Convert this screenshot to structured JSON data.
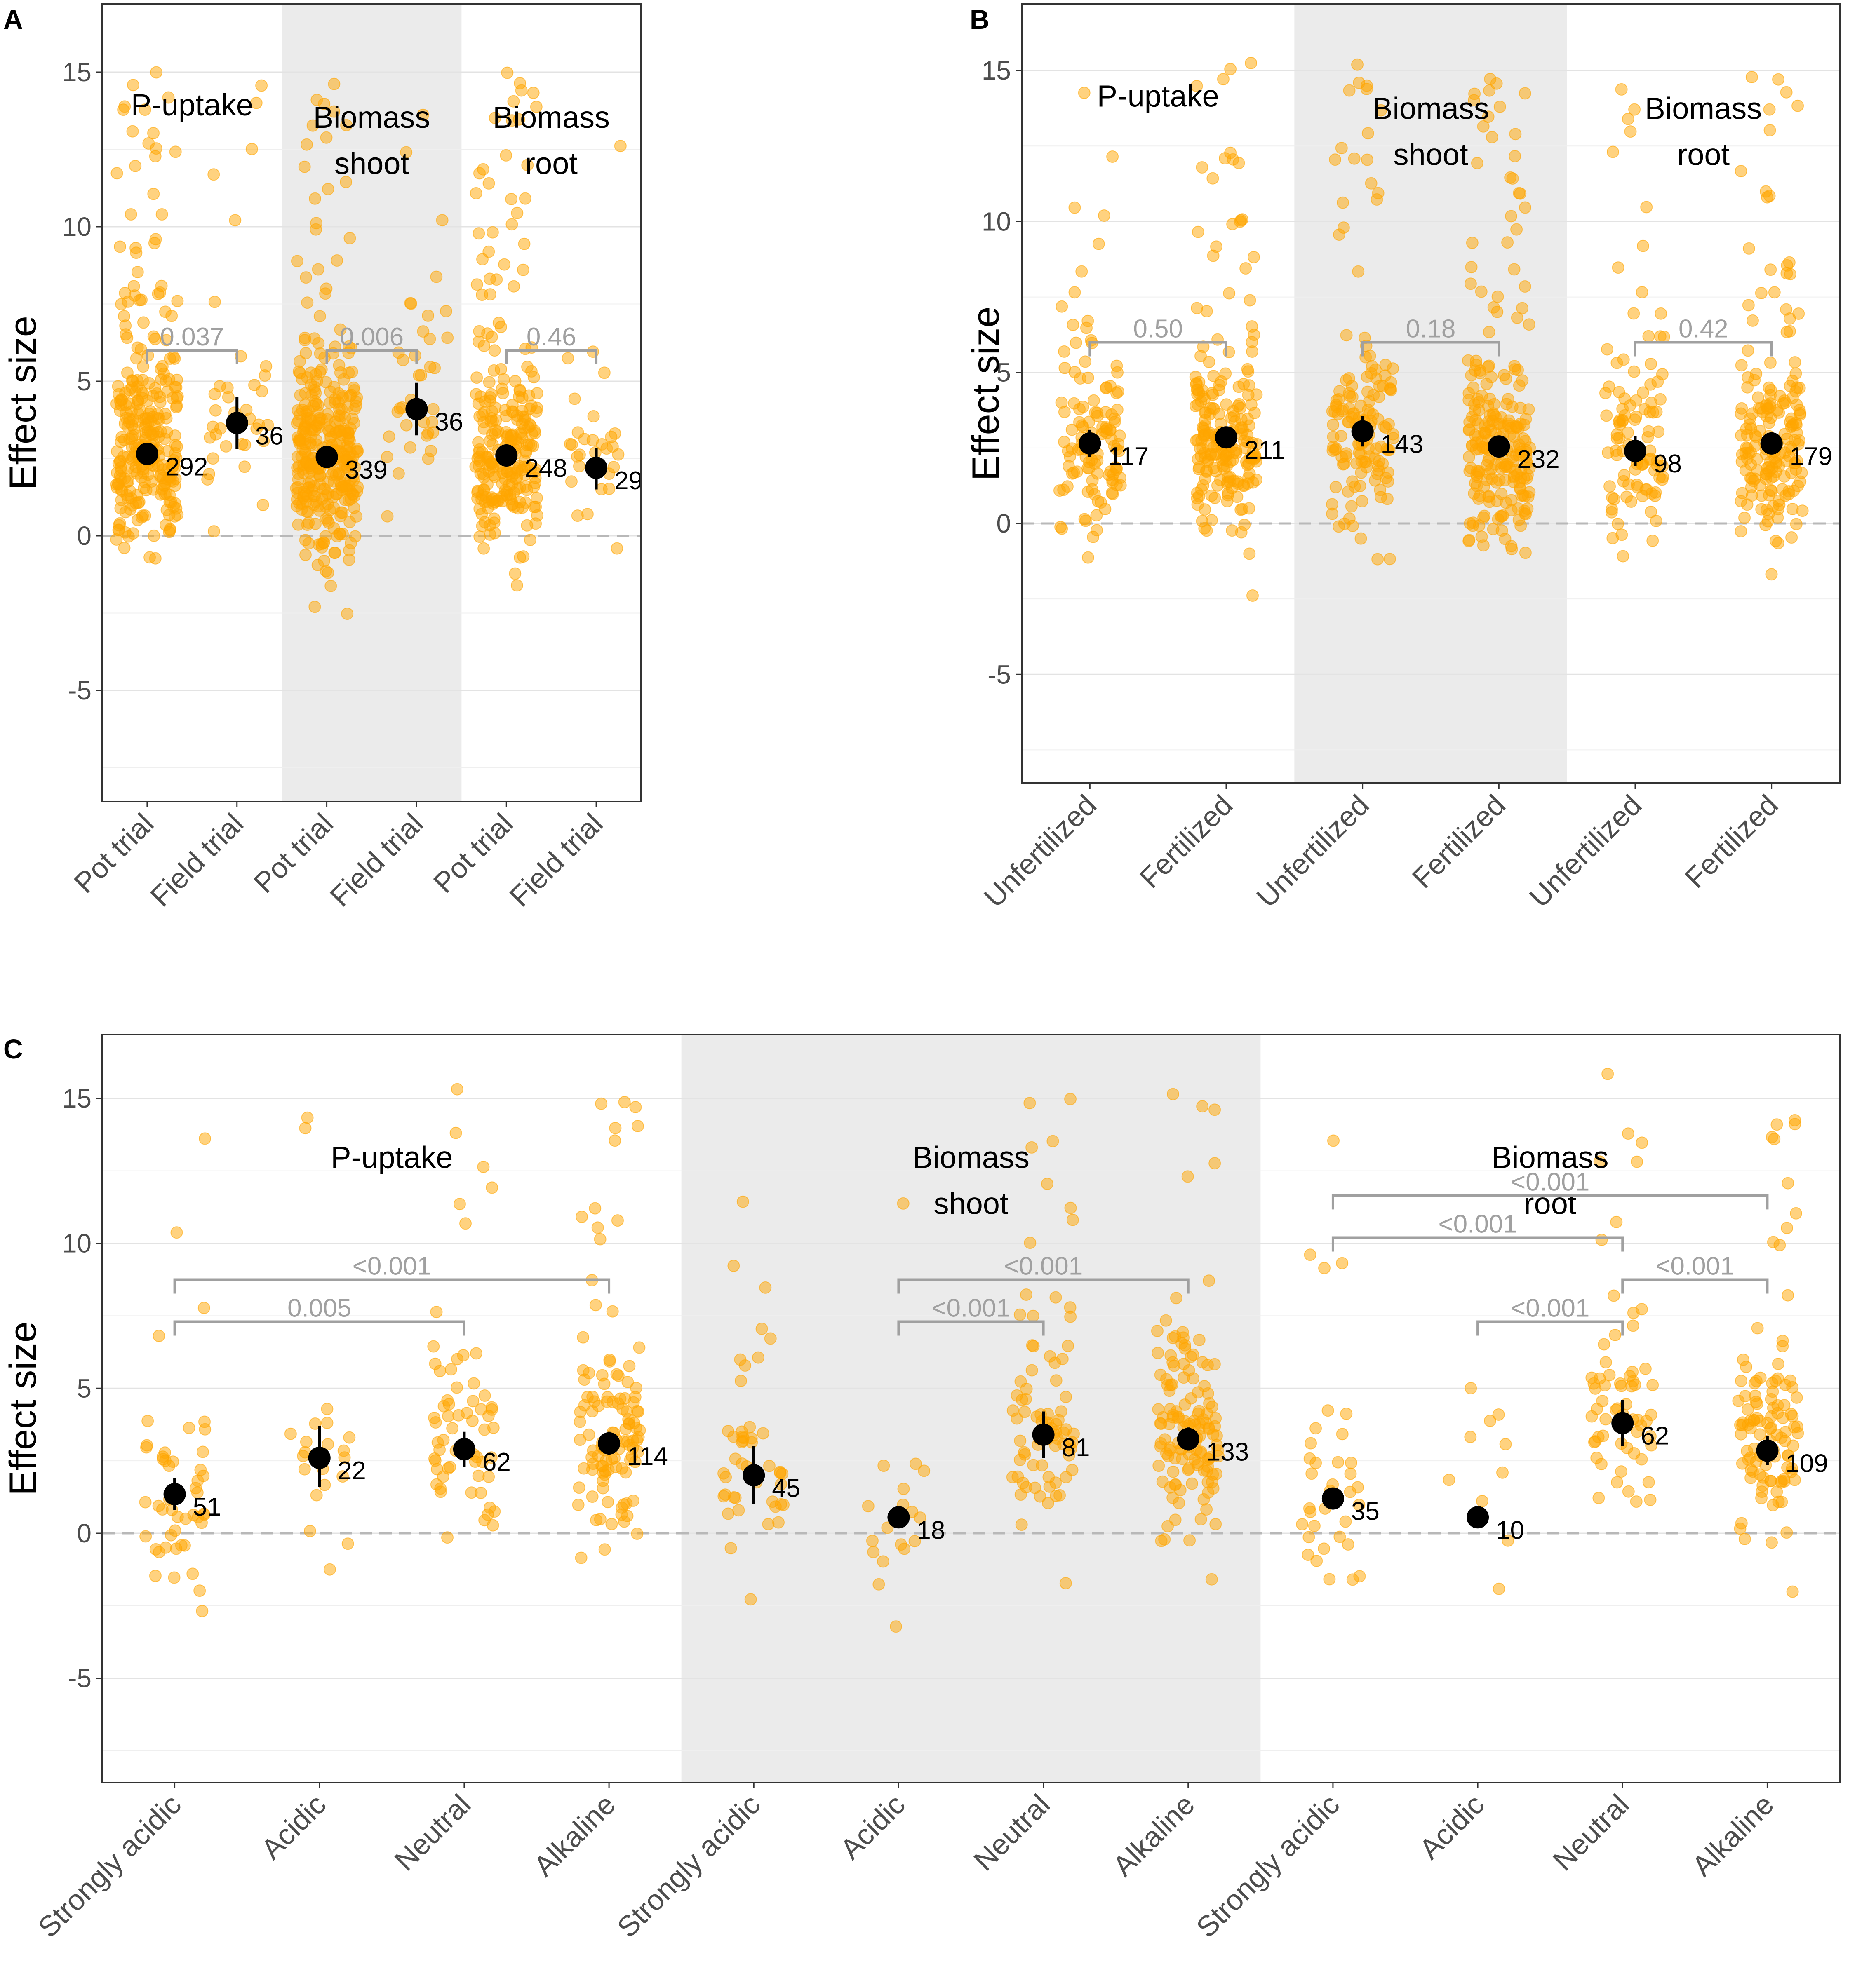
{
  "figure": {
    "bg_color": "#ffffff",
    "point_color": "#FFA500",
    "mean_color": "#000000",
    "shade_color": "#EBEBEB",
    "bracket_color": "#A0A0A0"
  },
  "chart_data": [
    {
      "panel": "A",
      "type": "scatter",
      "ylabel": "Effect size",
      "ylim": [
        -8.6,
        17.2
      ],
      "yticks": [
        -5,
        0,
        5,
        10,
        15
      ],
      "ytick_labels": [
        "-5",
        "0",
        "5",
        "10",
        "15"
      ],
      "groups": [
        {
          "label": [
            "P-uptake"
          ],
          "shaded": false,
          "categories": [
            "Pot trial",
            "Field trial"
          ],
          "means": [
            2.65,
            3.65
          ],
          "ci_low": [
            2.35,
            2.8
          ],
          "ci_high": [
            2.95,
            4.5
          ],
          "n": [
            "292",
            "36"
          ],
          "brackets": [
            {
              "from": 0,
              "to": 1,
              "label": "0.037"
            }
          ]
        },
        {
          "label": [
            "Biomass",
            "shoot"
          ],
          "shaded": true,
          "categories": [
            "Pot trial",
            "Field trial"
          ],
          "means": [
            2.55,
            4.1
          ],
          "ci_low": [
            2.25,
            3.25
          ],
          "ci_high": [
            2.85,
            4.95
          ],
          "n": [
            "339",
            "36"
          ],
          "brackets": [
            {
              "from": 0,
              "to": 1,
              "label": "0.006"
            }
          ]
        },
        {
          "label": [
            "Biomass",
            "root"
          ],
          "shaded": false,
          "categories": [
            "Pot trial",
            "Field trial"
          ],
          "means": [
            2.6,
            2.2
          ],
          "ci_low": [
            2.3,
            1.5
          ],
          "ci_high": [
            2.9,
            2.85
          ],
          "n": [
            "248",
            "29"
          ],
          "brackets": [
            {
              "from": 0,
              "to": 1,
              "label": "0.46"
            }
          ]
        }
      ]
    },
    {
      "panel": "B",
      "type": "scatter",
      "ylabel": "Effect size",
      "ylim": [
        -8.6,
        17.2
      ],
      "yticks": [
        -5,
        0,
        5,
        10,
        15
      ],
      "ytick_labels": [
        "-5",
        "0",
        "5",
        "10",
        "15"
      ],
      "groups": [
        {
          "label": [
            "P-uptake"
          ],
          "shaded": false,
          "categories": [
            "Unfertilized",
            "Fertilized"
          ],
          "means": [
            2.65,
            2.85
          ],
          "ci_low": [
            2.2,
            2.5
          ],
          "ci_high": [
            3.1,
            3.2
          ],
          "n": [
            "117",
            "211"
          ],
          "brackets": [
            {
              "from": 0,
              "to": 1,
              "label": "0.50"
            }
          ]
        },
        {
          "label": [
            "Biomass",
            "shoot"
          ],
          "shaded": true,
          "categories": [
            "Unfertilized",
            "Fertilized"
          ],
          "means": [
            3.05,
            2.55
          ],
          "ci_low": [
            2.55,
            2.2
          ],
          "ci_high": [
            3.55,
            2.9
          ],
          "n": [
            "143",
            "232"
          ],
          "brackets": [
            {
              "from": 0,
              "to": 1,
              "label": "0.18"
            }
          ]
        },
        {
          "label": [
            "Biomass",
            "root"
          ],
          "shaded": false,
          "categories": [
            "Unfertilized",
            "Fertilized"
          ],
          "means": [
            2.4,
            2.65
          ],
          "ci_low": [
            1.9,
            2.3
          ],
          "ci_high": [
            2.9,
            3.0
          ],
          "n": [
            "98",
            "179"
          ],
          "brackets": [
            {
              "from": 0,
              "to": 1,
              "label": "0.42"
            }
          ]
        }
      ]
    },
    {
      "panel": "C",
      "type": "scatter",
      "ylabel": "Effect size",
      "ylim": [
        -8.6,
        17.2
      ],
      "yticks": [
        -5,
        0,
        5,
        10,
        15
      ],
      "ytick_labels": [
        "-5",
        "0",
        "5",
        "10",
        "15"
      ],
      "groups": [
        {
          "label": [
            "P-uptake"
          ],
          "shaded": false,
          "categories": [
            "Strongly acidic",
            "Acidic",
            "Neutral",
            "Alkaline"
          ],
          "means": [
            1.35,
            2.6,
            2.9,
            3.1
          ],
          "ci_low": [
            0.8,
            1.6,
            2.3,
            2.7
          ],
          "ci_high": [
            1.9,
            3.7,
            3.5,
            3.5
          ],
          "n": [
            "51",
            "22",
            "62",
            "114"
          ],
          "brackets": [
            {
              "from": 0,
              "to": 2,
              "label": "0.005"
            },
            {
              "from": 0,
              "to": 3,
              "label": "<0.001"
            }
          ]
        },
        {
          "label": [
            "Biomass",
            "shoot"
          ],
          "shaded": true,
          "categories": [
            "Strongly acidic",
            "Acidic",
            "Neutral",
            "Alkaline"
          ],
          "means": [
            2.0,
            0.55,
            3.4,
            3.25
          ],
          "ci_low": [
            1.0,
            0.35,
            2.6,
            2.85
          ],
          "ci_high": [
            3.0,
            0.75,
            4.2,
            3.65
          ],
          "n": [
            "45",
            "18",
            "81",
            "133"
          ],
          "brackets": [
            {
              "from": 1,
              "to": 2,
              "label": "<0.001"
            },
            {
              "from": 1,
              "to": 3,
              "label": "<0.001"
            }
          ]
        },
        {
          "label": [
            "Biomass",
            "root"
          ],
          "shaded": false,
          "categories": [
            "Strongly acidic",
            "Acidic",
            "Neutral",
            "Alkaline"
          ],
          "means": [
            1.2,
            0.55,
            3.8,
            2.85
          ],
          "ci_low": [
            0.9,
            0.35,
            3.0,
            2.35
          ],
          "ci_high": [
            1.5,
            0.75,
            4.6,
            3.35
          ],
          "n": [
            "35",
            "10",
            "62",
            "109"
          ],
          "brackets": [
            {
              "from": 1,
              "to": 2,
              "label": "<0.001"
            },
            {
              "from": 2,
              "to": 3,
              "label": "<0.001"
            },
            {
              "from": 0,
              "to": 2,
              "label": "<0.001"
            },
            {
              "from": 0,
              "to": 3,
              "label": "<0.001"
            }
          ]
        }
      ]
    }
  ]
}
